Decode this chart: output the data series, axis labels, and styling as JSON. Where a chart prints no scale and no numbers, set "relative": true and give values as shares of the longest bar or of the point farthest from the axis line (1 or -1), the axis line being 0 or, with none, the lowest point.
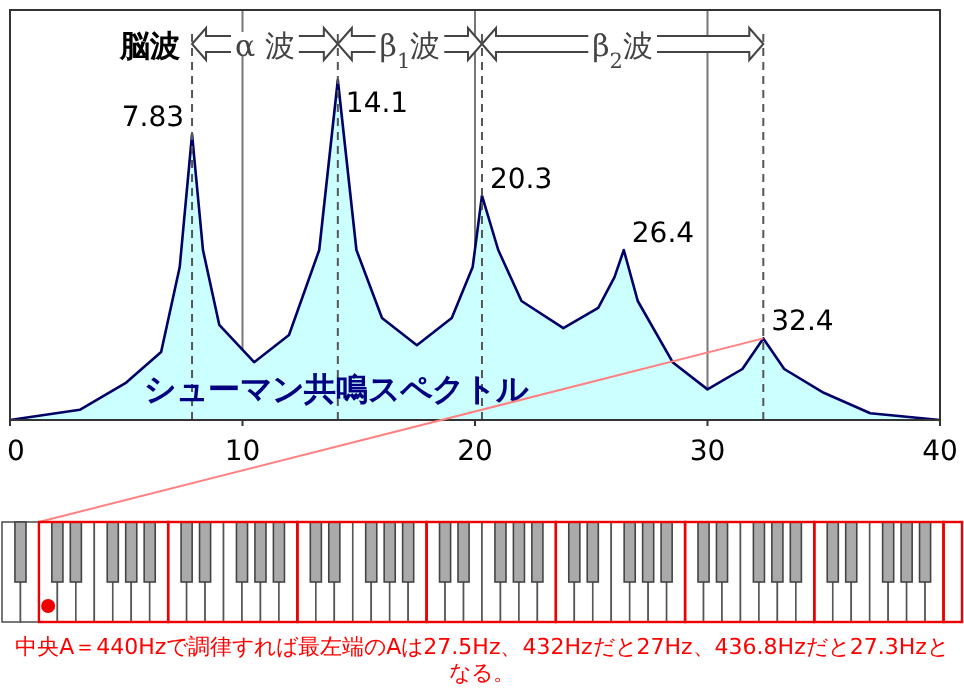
{
  "chart_data": {
    "type": "area",
    "relative": true,
    "title": "シューマン共鳴スペクトル",
    "color": "#ccffff",
    "x": [
      0,
      3,
      5,
      6.5,
      7.3,
      7.83,
      8.3,
      9,
      10.5,
      12,
      13.3,
      14.1,
      14.9,
      16,
      17.5,
      19,
      19.9,
      20.3,
      21,
      22,
      23.8,
      25.3,
      26,
      26.4,
      27,
      28.5,
      30,
      31.5,
      32.4,
      33.3,
      35,
      37,
      40
    ],
    "values": [
      0,
      0.03,
      0.11,
      0.2,
      0.45,
      0.84,
      0.5,
      0.28,
      0.17,
      0.25,
      0.5,
      1,
      0.5,
      0.3,
      0.22,
      0.3,
      0.45,
      0.66,
      0.5,
      0.35,
      0.27,
      0.33,
      0.42,
      0.5,
      0.35,
      0.17,
      0.09,
      0.15,
      0.24,
      0.15,
      0.08,
      0.02,
      0
    ],
    "xlim": [
      0,
      40
    ],
    "xticks": [
      0,
      10,
      20,
      30,
      40
    ],
    "grid": "x",
    "ref_lines": [
      {
        "axis": "x",
        "value": 7.83,
        "label": null,
        "line_style": "dashed"
      },
      {
        "axis": "x",
        "value": 14.1,
        "label": null,
        "line_style": "dashed"
      },
      {
        "axis": "x",
        "value": 20.3,
        "label": null,
        "line_style": "dashed"
      },
      {
        "axis": "x",
        "value": 32.4,
        "label": null,
        "line_style": "dashed"
      }
    ],
    "annotations": [
      {
        "text": "脳波"
      },
      {
        "text": "α 波"
      },
      {
        "text": "β$_{1}$波"
      },
      {
        "text": "β$_{2}$波"
      },
      {
        "text": "7.83",
        "x": 7.83,
        "y": 0.84
      },
      {
        "text": "14.1",
        "x": 14.1,
        "y": 1
      },
      {
        "text": "20.3",
        "x": 20.3,
        "y": 0.66
      },
      {
        "text": "26.4",
        "x": 26.4,
        "y": 0.5
      },
      {
        "text": "32.4",
        "x": 32.4,
        "y": 0.24
      },
      {
        "text": "中央A＝440Hzで調律すれば最左端のAは27.5Hz、432Hzだと27Hz、436.8Hzだと27.3Hzとなる。"
      }
    ]
  }
}
